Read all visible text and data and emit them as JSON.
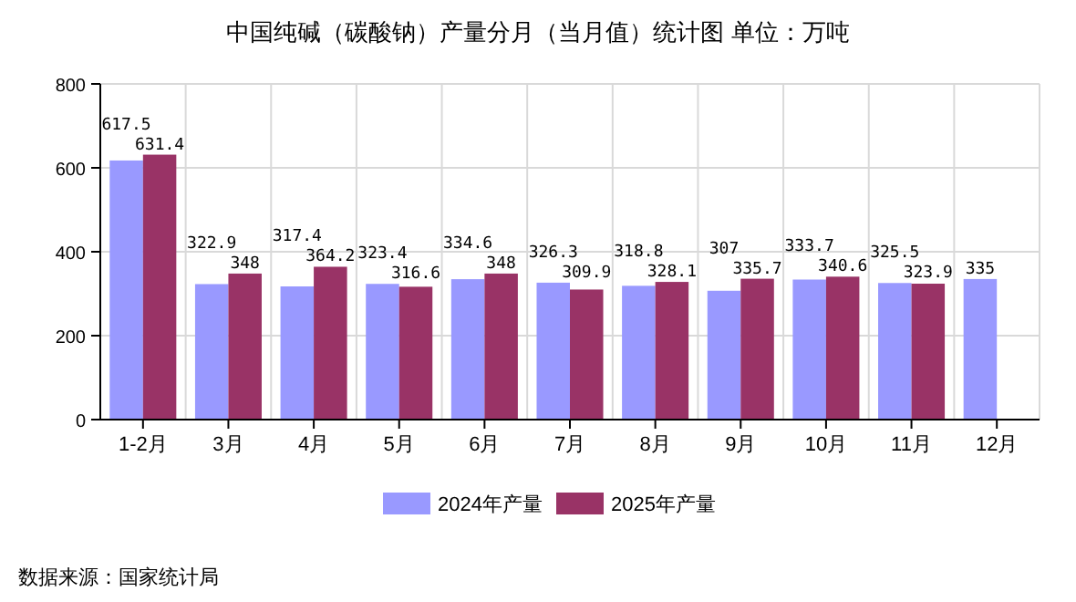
{
  "chart_data": {
    "type": "bar",
    "title": "中国纯碱（碳酸钠）产量分月（当月值）统计图 单位：万吨",
    "categories": [
      "1-2月",
      "3月",
      "4月",
      "5月",
      "6月",
      "7月",
      "8月",
      "9月",
      "10月",
      "11月",
      "12月"
    ],
    "series": [
      {
        "name": "2024年产量",
        "color": "#9999ff",
        "values": [
          617.5,
          322.9,
          317.4,
          323.4,
          334.6,
          326.3,
          318.8,
          307,
          333.7,
          325.5,
          335
        ]
      },
      {
        "name": "2025年产量",
        "color": "#993366",
        "values": [
          631.4,
          348,
          364.2,
          316.6,
          348,
          309.9,
          328.1,
          335.7,
          340.6,
          323.9,
          null
        ]
      }
    ],
    "ylim": [
      0,
      800
    ],
    "yticks": [
      0,
      200,
      400,
      600,
      800
    ],
    "grid": true,
    "legend": "bottom",
    "data_labels": true,
    "annotations": [
      "数据来源：国家统计局"
    ]
  }
}
